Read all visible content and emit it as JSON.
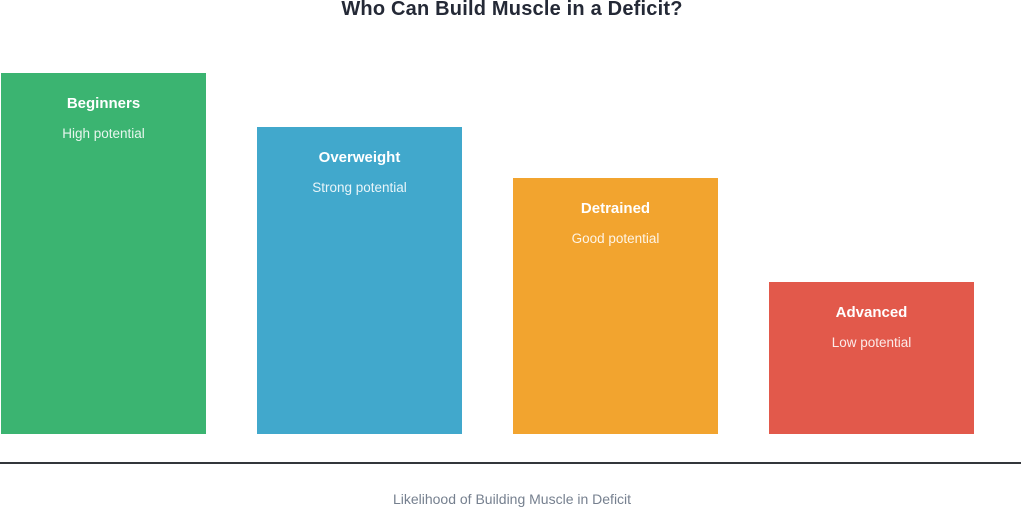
{
  "title": "Who Can Build Muscle in a Deficit?",
  "axis": {
    "label": "Likelihood of Building Muscle in Deficit",
    "line_color": "#33363B",
    "label_color": "#76808F"
  },
  "chart_data": {
    "type": "bar",
    "title": "Who Can Build Muscle in a Deficit?",
    "xlabel": "Likelihood of Building Muscle in Deficit",
    "ylabel": "",
    "orientation": "vertical",
    "grid": false,
    "legend": "none",
    "axis_ticks": "none",
    "ylim": [
      0,
      100
    ],
    "value_note": "values are relative bar heights as % of the tallest bar (no numeric axis shown)",
    "categories": [
      "Beginners",
      "Overweight",
      "Detrained",
      "Advanced"
    ],
    "series": [
      {
        "category": "Beginners",
        "potential": "High potential",
        "value": 100,
        "color": "#3BB471"
      },
      {
        "category": "Overweight",
        "potential": "Strong potential",
        "value": 85,
        "color": "#41A8CC"
      },
      {
        "category": "Detrained",
        "potential": "Good potential",
        "value": 71,
        "color": "#F2A42F"
      },
      {
        "category": "Advanced",
        "potential": "Low potential",
        "value": 42,
        "color": "#E2594B"
      }
    ]
  }
}
